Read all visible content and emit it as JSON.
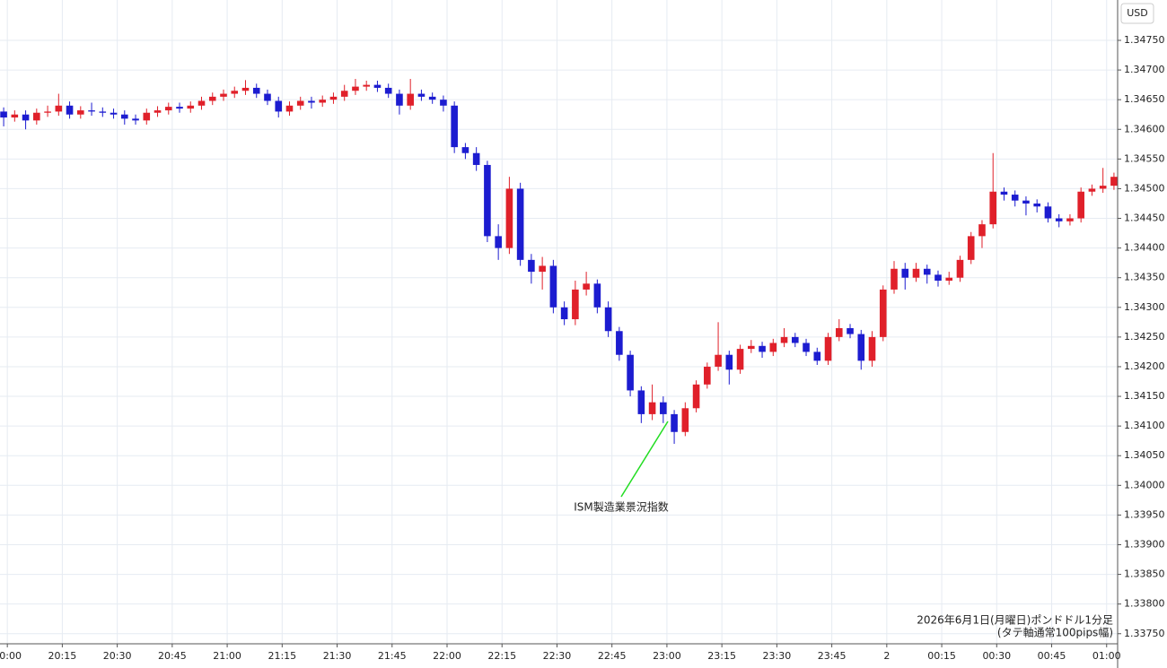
{
  "chart_data": {
    "type": "candlestick",
    "unit": "USD",
    "annotation": "ISM製造業景況指数",
    "footer": [
      "2026年6月1日(月曜日)ポンドドル1分足",
      "(タテ軸通常100pips幅)"
    ],
    "up_color": "#e0202a",
    "down_color": "#1c1cd0",
    "grid": true,
    "xlim": [
      -2,
      303
    ],
    "ylim": [
      1.33733,
      1.34818
    ],
    "xticks": [
      {
        "value": 0,
        "label": "20:00"
      },
      {
        "value": 15,
        "label": "20:15"
      },
      {
        "value": 30,
        "label": "20:30"
      },
      {
        "value": 45,
        "label": "20:45"
      },
      {
        "value": 60,
        "label": "21:00"
      },
      {
        "value": 75,
        "label": "21:15"
      },
      {
        "value": 90,
        "label": "21:30"
      },
      {
        "value": 105,
        "label": "21:45"
      },
      {
        "value": 120,
        "label": "22:00"
      },
      {
        "value": 135,
        "label": "22:15"
      },
      {
        "value": 150,
        "label": "22:30"
      },
      {
        "value": 165,
        "label": "22:45"
      },
      {
        "value": 180,
        "label": "23:00"
      },
      {
        "value": 195,
        "label": "23:15"
      },
      {
        "value": 210,
        "label": "23:30"
      },
      {
        "value": 225,
        "label": "23:45"
      },
      {
        "value": 240,
        "label": "2"
      },
      {
        "value": 255,
        "label": "00:15"
      },
      {
        "value": 270,
        "label": "00:30"
      },
      {
        "value": 285,
        "label": "00:45"
      },
      {
        "value": 300,
        "label": "01:00"
      }
    ],
    "yticks": [
      {
        "value": 1.3375,
        "label": "1.33750"
      },
      {
        "value": 1.338,
        "label": "1.33800"
      },
      {
        "value": 1.3385,
        "label": "1.33850"
      },
      {
        "value": 1.339,
        "label": "1.33900"
      },
      {
        "value": 1.3395,
        "label": "1.33950"
      },
      {
        "value": 1.34,
        "label": "1.34000"
      },
      {
        "value": 1.3405,
        "label": "1.34050"
      },
      {
        "value": 1.341,
        "label": "1.34100"
      },
      {
        "value": 1.3415,
        "label": "1.34150"
      },
      {
        "value": 1.342,
        "label": "1.34200"
      },
      {
        "value": 1.3425,
        "label": "1.34250"
      },
      {
        "value": 1.343,
        "label": "1.34300"
      },
      {
        "value": 1.3435,
        "label": "1.34350"
      },
      {
        "value": 1.344,
        "label": "1.34400"
      },
      {
        "value": 1.3445,
        "label": "1.34450"
      },
      {
        "value": 1.345,
        "label": "1.34500"
      },
      {
        "value": 1.3455,
        "label": "1.34550"
      },
      {
        "value": 1.346,
        "label": "1.34600"
      },
      {
        "value": 1.3465,
        "label": "1.34650"
      },
      {
        "value": 1.347,
        "label": "1.34700"
      },
      {
        "value": 1.3475,
        "label": "1.34750"
      }
    ],
    "x": [
      -1,
      2,
      5,
      8,
      11,
      14,
      17,
      20,
      23,
      26,
      29,
      32,
      35,
      38,
      41,
      44,
      47,
      50,
      53,
      56,
      59,
      62,
      65,
      68,
      71,
      74,
      77,
      80,
      83,
      86,
      89,
      92,
      95,
      98,
      101,
      104,
      107,
      110,
      113,
      116,
      119,
      122,
      125,
      128,
      131,
      134,
      137,
      140,
      143,
      146,
      149,
      152,
      155,
      158,
      161,
      164,
      167,
      170,
      173,
      176,
      179,
      182,
      185,
      188,
      191,
      194,
      197,
      200,
      203,
      206,
      209,
      212,
      215,
      218,
      221,
      224,
      227,
      230,
      233,
      236,
      239,
      242,
      245,
      248,
      251,
      254,
      257,
      260,
      263,
      266,
      269,
      272,
      275,
      278,
      281,
      284,
      287,
      290,
      293,
      296,
      299,
      302
    ],
    "candles": [
      [
        1.3463,
        1.34637,
        1.34605,
        1.3462
      ],
      [
        1.3462,
        1.34632,
        1.34613,
        1.34625
      ],
      [
        1.34625,
        1.34632,
        1.346,
        1.34615
      ],
      [
        1.34615,
        1.34635,
        1.34608,
        1.34628
      ],
      [
        1.34628,
        1.3464,
        1.34621,
        1.3463
      ],
      [
        1.3463,
        1.3466,
        1.34623,
        1.3464
      ],
      [
        1.3464,
        1.34647,
        1.34618,
        1.34625
      ],
      [
        1.34625,
        1.34639,
        1.34618,
        1.34632
      ],
      [
        1.34632,
        1.34645,
        1.34623,
        1.3463
      ],
      [
        1.3463,
        1.34637,
        1.34621,
        1.34628
      ],
      [
        1.34628,
        1.34635,
        1.34618,
        1.34625
      ],
      [
        1.34625,
        1.34632,
        1.34608,
        1.34618
      ],
      [
        1.34618,
        1.34625,
        1.34608,
        1.34615
      ],
      [
        1.34615,
        1.34635,
        1.34608,
        1.34628
      ],
      [
        1.34628,
        1.34639,
        1.34621,
        1.34632
      ],
      [
        1.34632,
        1.34645,
        1.34625,
        1.34638
      ],
      [
        1.34638,
        1.34645,
        1.34628,
        1.34635
      ],
      [
        1.34635,
        1.34647,
        1.34628,
        1.3464
      ],
      [
        1.3464,
        1.34655,
        1.34633,
        1.34648
      ],
      [
        1.34648,
        1.34662,
        1.34641,
        1.34655
      ],
      [
        1.34655,
        1.34667,
        1.34648,
        1.3466
      ],
      [
        1.3466,
        1.34672,
        1.34653,
        1.34665
      ],
      [
        1.34665,
        1.34683,
        1.34658,
        1.3467
      ],
      [
        1.3467,
        1.34677,
        1.34653,
        1.3466
      ],
      [
        1.3466,
        1.34667,
        1.34641,
        1.34648
      ],
      [
        1.34648,
        1.34655,
        1.3462,
        1.3463
      ],
      [
        1.3463,
        1.34647,
        1.34623,
        1.3464
      ],
      [
        1.3464,
        1.34655,
        1.34633,
        1.34648
      ],
      [
        1.34648,
        1.34655,
        1.34635,
        1.34645
      ],
      [
        1.34645,
        1.34657,
        1.34638,
        1.3465
      ],
      [
        1.3465,
        1.34662,
        1.34643,
        1.34655
      ],
      [
        1.34655,
        1.34675,
        1.34648,
        1.34665
      ],
      [
        1.34665,
        1.34685,
        1.34658,
        1.34672
      ],
      [
        1.34672,
        1.34682,
        1.34665,
        1.34675
      ],
      [
        1.34675,
        1.34682,
        1.34663,
        1.3467
      ],
      [
        1.3467,
        1.34677,
        1.34653,
        1.3466
      ],
      [
        1.3466,
        1.34667,
        1.34625,
        1.3464
      ],
      [
        1.3464,
        1.34685,
        1.34633,
        1.3466
      ],
      [
        1.3466,
        1.34667,
        1.34648,
        1.34655
      ],
      [
        1.34655,
        1.34662,
        1.34643,
        1.3465
      ],
      [
        1.3465,
        1.34657,
        1.3463,
        1.3464
      ],
      [
        1.3464,
        1.34647,
        1.3456,
        1.3457
      ],
      [
        1.3457,
        1.34577,
        1.3455,
        1.3456
      ],
      [
        1.3456,
        1.3457,
        1.3453,
        1.3454
      ],
      [
        1.3454,
        1.34547,
        1.3441,
        1.3442
      ],
      [
        1.3442,
        1.3444,
        1.3438,
        1.344
      ],
      [
        1.344,
        1.3452,
        1.3439,
        1.345
      ],
      [
        1.345,
        1.3451,
        1.3437,
        1.3438
      ],
      [
        1.3438,
        1.3439,
        1.3434,
        1.3436
      ],
      [
        1.3436,
        1.34385,
        1.3433,
        1.3437
      ],
      [
        1.3437,
        1.3438,
        1.3429,
        1.343
      ],
      [
        1.343,
        1.3431,
        1.3427,
        1.3428
      ],
      [
        1.3428,
        1.34345,
        1.3427,
        1.3433
      ],
      [
        1.3433,
        1.3436,
        1.3432,
        1.3434
      ],
      [
        1.3434,
        1.34347,
        1.3429,
        1.343
      ],
      [
        1.343,
        1.3431,
        1.3425,
        1.3426
      ],
      [
        1.3426,
        1.34267,
        1.3421,
        1.3422
      ],
      [
        1.3422,
        1.34227,
        1.3415,
        1.3416
      ],
      [
        1.3416,
        1.34167,
        1.34105,
        1.3412
      ],
      [
        1.3412,
        1.3417,
        1.3411,
        1.3414
      ],
      [
        1.3414,
        1.3415,
        1.34105,
        1.3412
      ],
      [
        1.3412,
        1.34127,
        1.3407,
        1.3409
      ],
      [
        1.3409,
        1.3414,
        1.34083,
        1.3413
      ],
      [
        1.3413,
        1.34177,
        1.34123,
        1.3417
      ],
      [
        1.3417,
        1.34207,
        1.34163,
        1.342
      ],
      [
        1.342,
        1.34275,
        1.34193,
        1.3422
      ],
      [
        1.3422,
        1.34227,
        1.3417,
        1.34195
      ],
      [
        1.34195,
        1.34237,
        1.34188,
        1.3423
      ],
      [
        1.3423,
        1.34245,
        1.34223,
        1.34235
      ],
      [
        1.34235,
        1.34242,
        1.34215,
        1.34225
      ],
      [
        1.34225,
        1.34247,
        1.34218,
        1.3424
      ],
      [
        1.3424,
        1.34265,
        1.34233,
        1.3425
      ],
      [
        1.3425,
        1.34257,
        1.34233,
        1.3424
      ],
      [
        1.3424,
        1.34247,
        1.34218,
        1.34225
      ],
      [
        1.34225,
        1.34232,
        1.34203,
        1.3421
      ],
      [
        1.3421,
        1.34257,
        1.34203,
        1.3425
      ],
      [
        1.3425,
        1.3428,
        1.34243,
        1.34265
      ],
      [
        1.34265,
        1.34272,
        1.34248,
        1.34255
      ],
      [
        1.34255,
        1.34262,
        1.34195,
        1.3421
      ],
      [
        1.3421,
        1.3426,
        1.342,
        1.3425
      ],
      [
        1.3425,
        1.34337,
        1.34243,
        1.3433
      ],
      [
        1.3433,
        1.34378,
        1.34323,
        1.34365
      ],
      [
        1.34365,
        1.34375,
        1.3433,
        1.3435
      ],
      [
        1.3435,
        1.34375,
        1.34343,
        1.34365
      ],
      [
        1.34365,
        1.34372,
        1.3434,
        1.34355
      ],
      [
        1.34355,
        1.34362,
        1.34335,
        1.34345
      ],
      [
        1.34345,
        1.3436,
        1.34338,
        1.3435
      ],
      [
        1.3435,
        1.34387,
        1.34343,
        1.3438
      ],
      [
        1.3438,
        1.34427,
        1.34373,
        1.3442
      ],
      [
        1.3442,
        1.34447,
        1.344,
        1.3444
      ],
      [
        1.3444,
        1.3456,
        1.34433,
        1.34495
      ],
      [
        1.34495,
        1.34502,
        1.3448,
        1.3449
      ],
      [
        1.3449,
        1.34497,
        1.3447,
        1.3448
      ],
      [
        1.3448,
        1.34487,
        1.34455,
        1.34475
      ],
      [
        1.34475,
        1.34482,
        1.3446,
        1.3447
      ],
      [
        1.3447,
        1.34477,
        1.34443,
        1.3445
      ],
      [
        1.3445,
        1.34457,
        1.34435,
        1.34445
      ],
      [
        1.34445,
        1.34457,
        1.34438,
        1.3445
      ],
      [
        1.3445,
        1.34502,
        1.34443,
        1.34495
      ],
      [
        1.34495,
        1.34507,
        1.34488,
        1.345
      ],
      [
        1.345,
        1.34535,
        1.34493,
        1.34505
      ],
      [
        1.34505,
        1.34527,
        1.34498,
        1.3452
      ]
    ]
  }
}
